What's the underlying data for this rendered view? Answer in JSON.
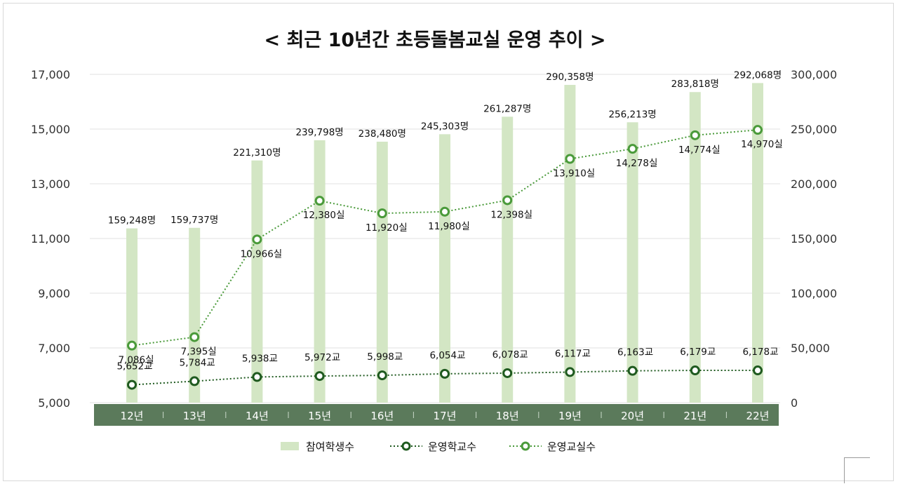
{
  "chart_data": {
    "type": "bar+line",
    "title": "< 최근 10년간 초등돌봄교실 운영 추이 >",
    "categories": [
      "12년",
      "13년",
      "14년",
      "15년",
      "16년",
      "17년",
      "18년",
      "19년",
      "20년",
      "21년",
      "22년"
    ],
    "left_axis": {
      "ylim": [
        5000,
        17000
      ],
      "ticks": [
        "5,000",
        "7,000",
        "9,000",
        "11,000",
        "13,000",
        "15,000",
        "17,000"
      ],
      "tick_values": [
        5000,
        7000,
        9000,
        11000,
        13000,
        15000,
        17000
      ]
    },
    "right_axis": {
      "ylim": [
        0,
        300000
      ],
      "ticks": [
        "0",
        "50,000",
        "100,000",
        "150,000",
        "200,000",
        "250,000",
        "300,000"
      ],
      "tick_values": [
        0,
        50000,
        100000,
        150000,
        200000,
        250000,
        300000
      ]
    },
    "series": [
      {
        "name": "참여학생수",
        "type": "bar",
        "axis": "right",
        "color": "#d3e6c4",
        "values": [
          159248,
          159737,
          221310,
          239798,
          238480,
          245303,
          261287,
          290358,
          256213,
          283818,
          292068
        ],
        "labels": [
          "159,248명",
          "159,737명",
          "221,310명",
          "239,798명",
          "238,480명",
          "245,303명",
          "261,287명",
          "290,358명",
          "256,213명",
          "283,818명",
          "292,068명"
        ]
      },
      {
        "name": "운영학교수",
        "type": "line",
        "axis": "left",
        "color": "#1f5a1f",
        "values": [
          5652,
          5784,
          5938,
          5972,
          5998,
          6054,
          6078,
          6117,
          6163,
          6179,
          6178
        ],
        "labels": [
          "5,652교",
          "5,784교",
          "5,938교",
          "5,972교",
          "5,998교",
          "6,054교",
          "6,078교",
          "6,117교",
          "6,163교",
          "6,179교",
          "6,178교"
        ]
      },
      {
        "name": "운영교실수",
        "type": "line",
        "axis": "left",
        "color": "#4a9a3a",
        "values": [
          7086,
          7395,
          10966,
          12380,
          11920,
          11980,
          12398,
          13910,
          14278,
          14774,
          14970
        ],
        "labels": [
          "7,086실",
          "7,395실",
          "10,966실",
          "12,380실",
          "11,920실",
          "11,980실",
          "12,398실",
          "13,910실",
          "14,278실",
          "14,774실",
          "14,970실"
        ]
      }
    ],
    "legend": {
      "position": "bottom"
    },
    "colors": {
      "category_band": "#5b7a5b",
      "grid": "#e2e2e2"
    }
  }
}
